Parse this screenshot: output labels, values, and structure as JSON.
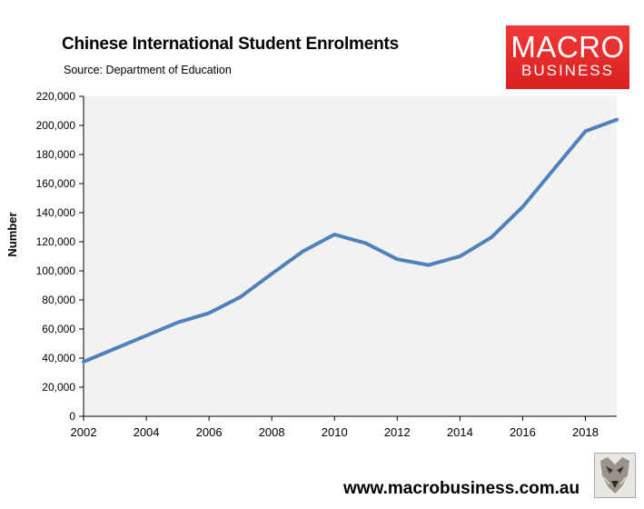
{
  "header": {
    "title": "Chinese International Student Enrolments",
    "source": "Source: Department of Education"
  },
  "logo": {
    "line1": "MACRO",
    "line2": "BUSINESS",
    "color": "#e02a28"
  },
  "footer": {
    "website": "www.macrobusiness.com.au"
  },
  "chart_data": {
    "type": "line",
    "title": "Chinese International Student Enrolments",
    "xlabel": "",
    "ylabel": "Number",
    "ylim": [
      0,
      220000
    ],
    "xlim": [
      2002,
      2019
    ],
    "yticks": [
      0,
      20000,
      40000,
      60000,
      80000,
      100000,
      120000,
      140000,
      160000,
      180000,
      200000,
      220000
    ],
    "ytick_labels": [
      "0",
      "20,000",
      "40,000",
      "60,000",
      "80,000",
      "100,000",
      "120,000",
      "140,000",
      "160,000",
      "180,000",
      "200,000",
      "220,000"
    ],
    "xticks": [
      2002,
      2004,
      2006,
      2008,
      2010,
      2012,
      2014,
      2016,
      2018
    ],
    "xtick_labels": [
      "2002",
      "2004",
      "2006",
      "2008",
      "2010",
      "2012",
      "2014",
      "2016",
      "2018"
    ],
    "grid": false,
    "plot_background": "#f2f2f2",
    "series": [
      {
        "color": "#4f81bd",
        "x": [
          2002,
          2003,
          2004,
          2005,
          2006,
          2007,
          2008,
          2009,
          2010,
          2011,
          2012,
          2013,
          2014,
          2015,
          2016,
          2017,
          2018,
          2019
        ],
        "values": [
          37500,
          46500,
          55500,
          64500,
          71000,
          82000,
          98000,
          113500,
          125000,
          119000,
          108000,
          104000,
          110000,
          123000,
          144000,
          170000,
          196000,
          204000
        ]
      }
    ]
  }
}
